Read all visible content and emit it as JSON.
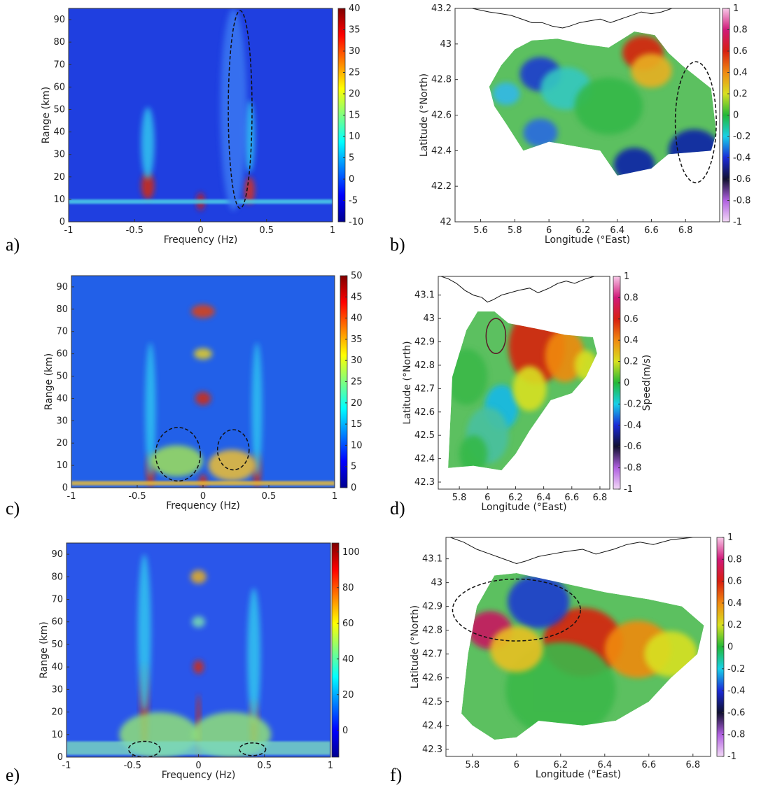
{
  "panel_letters": [
    "a)",
    "b)",
    "c)",
    "d)",
    "e)",
    "f)"
  ],
  "chart_data": [
    {
      "type": "heatmap",
      "panel": "a)",
      "xlabel": "Frequency (Hz)",
      "ylabel": "Range (km)",
      "xlim": [
        -1,
        1
      ],
      "ylim": [
        0,
        95
      ],
      "xticks": [
        -1,
        -0.5,
        0,
        0.5,
        1
      ],
      "yticks": [
        0,
        10,
        20,
        30,
        40,
        50,
        60,
        70,
        80,
        90
      ],
      "colorbar": {
        "min": -10,
        "max": 40,
        "ticks": [
          -10,
          -5,
          0,
          5,
          10,
          15,
          20,
          25,
          30,
          35,
          40
        ]
      },
      "background": "#1f3fe0",
      "features": [
        {
          "kind": "blob",
          "x": -0.4,
          "y": 16,
          "rx": 0.05,
          "ry": 6,
          "color": "#d42a10"
        },
        {
          "kind": "blob",
          "x": -0.4,
          "y": 35,
          "rx": 0.05,
          "ry": 16,
          "color": "#33c6f0"
        },
        {
          "kind": "blob",
          "x": 0.37,
          "y": 14,
          "rx": 0.04,
          "ry": 6,
          "color": "#d8301a"
        },
        {
          "kind": "blob",
          "x": 0.37,
          "y": 38,
          "rx": 0.04,
          "ry": 16,
          "color": "#2ec2f2"
        },
        {
          "kind": "blob",
          "x": 0,
          "y": 9,
          "rx": 0.03,
          "ry": 4,
          "color": "#c81a18"
        },
        {
          "kind": "band",
          "y": 9,
          "height": 2,
          "color": "#4fd8e8"
        },
        {
          "kind": "blob",
          "x": 0.25,
          "y": 50,
          "rx": 0.1,
          "ry": 45,
          "color": "#3a78f2"
        }
      ],
      "annotations": [
        {
          "shape": "ellipse",
          "x": 0.3,
          "y": 50,
          "rx": 0.09,
          "ry": 44
        }
      ]
    },
    {
      "type": "map",
      "panel": "b)",
      "xlabel": "Longitude (°East)",
      "ylabel": "Latitude (°North)",
      "xlim": [
        5.45,
        7.0
      ],
      "ylim": [
        42.0,
        43.2
      ],
      "xticks": [
        5.6,
        5.8,
        6,
        6.2,
        6.4,
        6.6,
        6.8
      ],
      "yticks": [
        42,
        42.2,
        42.4,
        42.6,
        42.8,
        43,
        43.2
      ],
      "colorbar": {
        "min": -1,
        "max": 1,
        "ticks": [
          -1,
          -0.8,
          -0.6,
          -0.4,
          -0.2,
          0,
          0.2,
          0.4,
          0.6,
          0.8,
          1
        ],
        "label": ""
      },
      "annotations": [
        {
          "shape": "ellipse",
          "lon": 6.86,
          "lat": 42.56,
          "rlon": 0.12,
          "rlat": 0.34
        }
      ]
    },
    {
      "type": "heatmap",
      "panel": "c)",
      "xlabel": "Frequency (Hz)",
      "ylabel": "Range (km)",
      "xlim": [
        -1,
        1
      ],
      "ylim": [
        0,
        95
      ],
      "xticks": [
        -1,
        -0.5,
        0,
        0.5,
        1
      ],
      "yticks": [
        0,
        10,
        20,
        30,
        40,
        50,
        60,
        70,
        80,
        90
      ],
      "colorbar": {
        "min": 0,
        "max": 50,
        "ticks": [
          0,
          5,
          10,
          15,
          20,
          25,
          30,
          35,
          40,
          45,
          50
        ]
      },
      "background": "#2260e8",
      "features": [
        {
          "kind": "blob",
          "x": -0.4,
          "y": 8,
          "rx": 0.03,
          "ry": 8,
          "color": "#d42a10"
        },
        {
          "kind": "blob",
          "x": -0.4,
          "y": 35,
          "rx": 0.04,
          "ry": 30,
          "color": "#2ec2f2"
        },
        {
          "kind": "blob",
          "x": 0.41,
          "y": 8,
          "rx": 0.03,
          "ry": 8,
          "color": "#d42a10"
        },
        {
          "kind": "blob",
          "x": 0.41,
          "y": 35,
          "rx": 0.04,
          "ry": 30,
          "color": "#2ec2f2"
        },
        {
          "kind": "blob",
          "x": 0,
          "y": 79,
          "rx": 0.09,
          "ry": 3,
          "color": "#e04010"
        },
        {
          "kind": "blob",
          "x": 0,
          "y": 60,
          "rx": 0.07,
          "ry": 2.5,
          "color": "#e8d020"
        },
        {
          "kind": "blob",
          "x": 0,
          "y": 40,
          "rx": 0.06,
          "ry": 3,
          "color": "#d42a10"
        },
        {
          "kind": "blob",
          "x": 0,
          "y": 3,
          "rx": 0.03,
          "ry": 3,
          "color": "#d42a10"
        },
        {
          "kind": "blob",
          "x": -0.2,
          "y": 12,
          "rx": 0.2,
          "ry": 7,
          "color": "#9ee05a"
        },
        {
          "kind": "blob",
          "x": 0.22,
          "y": 10,
          "rx": 0.18,
          "ry": 7,
          "color": "#f0c030"
        },
        {
          "kind": "band",
          "y": 2,
          "height": 2,
          "color": "#f0c030"
        }
      ],
      "annotations": [
        {
          "shape": "ellipse",
          "x": -0.19,
          "y": 15,
          "rx": 0.17,
          "ry": 12
        },
        {
          "shape": "ellipse",
          "x": 0.23,
          "y": 17,
          "rx": 0.12,
          "ry": 9
        }
      ]
    },
    {
      "type": "map",
      "panel": "d)",
      "xlabel": "Longitude (°East)",
      "ylabel": "Latitude (°North)",
      "xlim": [
        5.65,
        6.87
      ],
      "ylim": [
        42.27,
        43.18
      ],
      "xticks": [
        5.8,
        6,
        6.2,
        6.4,
        6.6,
        6.8
      ],
      "yticks": [
        42.3,
        42.4,
        42.5,
        42.6,
        42.7,
        42.8,
        42.9,
        43,
        43.1
      ],
      "colorbar": {
        "min": -1,
        "max": 1,
        "ticks": [
          -1,
          -0.8,
          -0.6,
          -0.4,
          -0.2,
          0,
          0.2,
          0.4,
          0.6,
          0.8,
          1
        ],
        "label": "Speed(m/s)"
      },
      "annotations": [
        {
          "shape": "circle",
          "lon": 6.06,
          "lat": 42.925,
          "rlon": 0.07,
          "rlat": 0.075
        }
      ]
    },
    {
      "type": "heatmap",
      "panel": "e)",
      "xlabel": "Frequency (Hz)",
      "ylabel": "Range (km)",
      "xlim": [
        -1,
        1
      ],
      "ylim": [
        0,
        95
      ],
      "xticks": [
        -1,
        -0.5,
        0,
        0.5,
        1
      ],
      "yticks": [
        0,
        10,
        20,
        30,
        40,
        50,
        60,
        70,
        80,
        90
      ],
      "colorbar": {
        "min": -15,
        "max": 105,
        "ticks": [
          0,
          20,
          40,
          60,
          80,
          100
        ]
      },
      "background": "#2a56ea",
      "features": [
        {
          "kind": "blob",
          "x": -0.41,
          "y": 22,
          "rx": 0.03,
          "ry": 20,
          "color": "#c81a18"
        },
        {
          "kind": "blob",
          "x": -0.41,
          "y": 55,
          "rx": 0.05,
          "ry": 35,
          "color": "#33c6f0"
        },
        {
          "kind": "blob",
          "x": 0.42,
          "y": 14,
          "rx": 0.03,
          "ry": 12,
          "color": "#d42a10"
        },
        {
          "kind": "blob",
          "x": 0.42,
          "y": 45,
          "rx": 0.05,
          "ry": 30,
          "color": "#33c6f0"
        },
        {
          "kind": "blob",
          "x": 0,
          "y": 80,
          "rx": 0.06,
          "ry": 3,
          "color": "#e8b020"
        },
        {
          "kind": "blob",
          "x": 0,
          "y": 60,
          "rx": 0.05,
          "ry": 2.5,
          "color": "#7ae0b0"
        },
        {
          "kind": "blob",
          "x": 0,
          "y": 40,
          "rx": 0.04,
          "ry": 3,
          "color": "#d42a10"
        },
        {
          "kind": "blob",
          "x": 0,
          "y": 14,
          "rx": 0.015,
          "ry": 14,
          "color": "#d42a10"
        },
        {
          "kind": "blob",
          "x": -0.3,
          "y": 10,
          "rx": 0.3,
          "ry": 10,
          "color": "#8fe07a"
        },
        {
          "kind": "blob",
          "x": 0.25,
          "y": 10,
          "rx": 0.3,
          "ry": 10,
          "color": "#8fe07a"
        },
        {
          "kind": "band",
          "y": 4,
          "height": 6,
          "color": "#7ad8c0"
        }
      ],
      "annotations": [
        {
          "shape": "ellipse",
          "x": -0.41,
          "y": 3.5,
          "rx": 0.12,
          "ry": 3.5
        },
        {
          "shape": "ellipse",
          "x": 0.41,
          "y": 3.5,
          "rx": 0.1,
          "ry": 2.8
        }
      ]
    },
    {
      "type": "map",
      "panel": "f)",
      "xlabel": "Longitude (°East)",
      "ylabel": "Latitude (°North)",
      "xlim": [
        5.68,
        6.88
      ],
      "ylim": [
        42.27,
        43.19
      ],
      "xticks": [
        5.8,
        6,
        6.2,
        6.4,
        6.6,
        6.8
      ],
      "yticks": [
        42.3,
        42.4,
        42.5,
        42.6,
        42.7,
        42.8,
        42.9,
        43,
        43.1
      ],
      "colorbar": {
        "min": -1,
        "max": 1,
        "ticks": [
          -1,
          -0.8,
          -0.6,
          -0.4,
          -0.2,
          0,
          0.2,
          0.4,
          0.6,
          0.8,
          1
        ],
        "label": ""
      },
      "annotations": [
        {
          "shape": "ellipse",
          "lon": 6.0,
          "lat": 42.885,
          "rlon": 0.29,
          "rlat": 0.13
        }
      ]
    }
  ]
}
